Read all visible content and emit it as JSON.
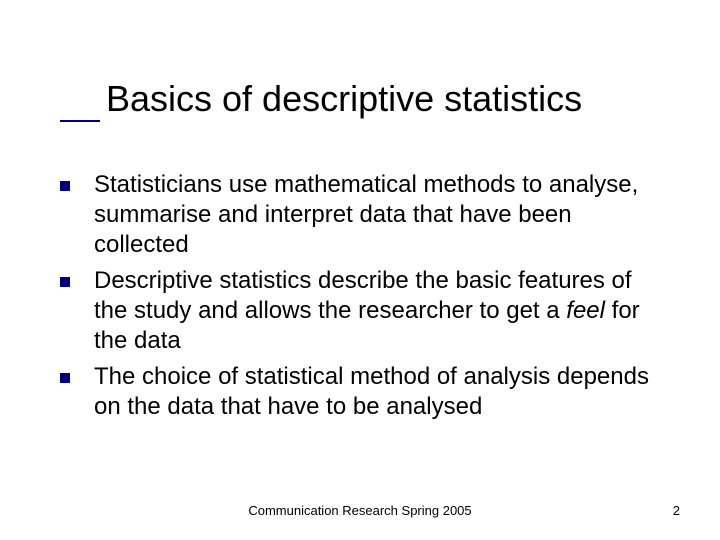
{
  "slide": {
    "title": "Basics of descriptive statistics",
    "title_fontsize": 36,
    "title_color": "#000000",
    "accent_color": "#000080",
    "body_fontsize": 24,
    "body_color": "#000000",
    "background_color": "#ffffff",
    "bullets": [
      {
        "text_parts": [
          {
            "text": "Statisticians use mathematical methods to analyse, summarise and interpret data that have been collected",
            "italic": false
          }
        ]
      },
      {
        "text_parts": [
          {
            "text": "Descriptive statistics describe the basic features of the study and allows the researcher to get a ",
            "italic": false
          },
          {
            "text": "feel",
            "italic": true
          },
          {
            "text": " for the data",
            "italic": false
          }
        ]
      },
      {
        "text_parts": [
          {
            "text": "The choice of statistical method of analysis depends on the data that have to be analysed",
            "italic": false
          }
        ]
      }
    ],
    "footer": "Communication Research Spring 2005",
    "page_number": "2",
    "footer_fontsize": 13
  }
}
